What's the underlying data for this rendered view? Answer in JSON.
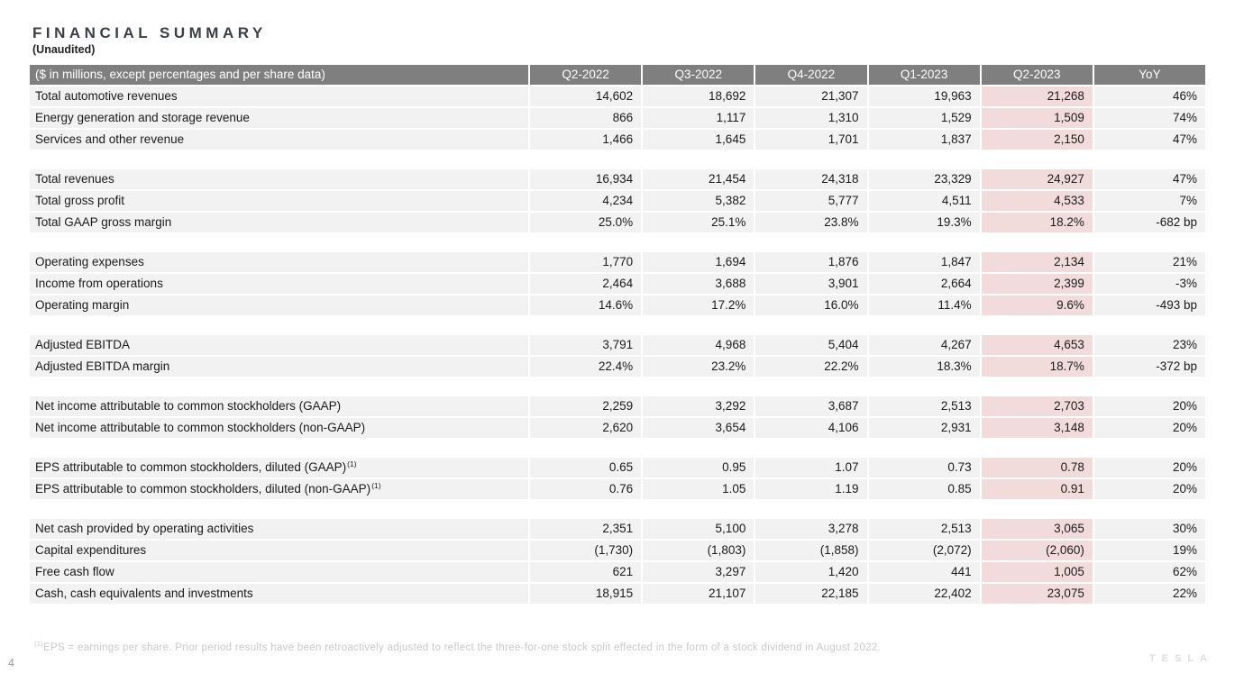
{
  "page": {
    "title": "FINANCIAL SUMMARY",
    "subtitle": "(Unaudited)",
    "page_number": "4",
    "footnote_marker": "(1)",
    "footnote_text": "EPS = earnings per share. Prior period results have been retroactively adjusted to reflect the three-for-one stock split effected in the form of a stock dividend in August 2022.",
    "logo_text": "TESLA"
  },
  "colors": {
    "header_bg": "#7f7f7f",
    "header_text": "#ffffff",
    "row_bg": "#f2f2f2",
    "highlight_column_bg": "#f2dcdb",
    "body_text": "#1a1a1a",
    "title_text": "#3a3f46",
    "footnote_text": "#c9c9c9"
  },
  "chart_data": {
    "type": "table",
    "corner_label": "($ in millions, except percentages and per share data)",
    "columns": [
      "Q2-2022",
      "Q3-2022",
      "Q4-2022",
      "Q1-2023",
      "Q2-2023",
      "YoY"
    ],
    "highlight_column_index": 4,
    "highlight_column": "Q2-2023",
    "sections": [
      {
        "rows": [
          {
            "label": "Total automotive revenues",
            "values": [
              "14,602",
              "18,692",
              "21,307",
              "19,963",
              "21,268",
              "46%"
            ]
          },
          {
            "label": "Energy generation and storage revenue",
            "values": [
              "866",
              "1,117",
              "1,310",
              "1,529",
              "1,509",
              "74%"
            ]
          },
          {
            "label": "Services and other revenue",
            "values": [
              "1,466",
              "1,645",
              "1,701",
              "1,837",
              "2,150",
              "47%"
            ]
          }
        ]
      },
      {
        "rows": [
          {
            "label": "Total revenues",
            "values": [
              "16,934",
              "21,454",
              "24,318",
              "23,329",
              "24,927",
              "47%"
            ]
          },
          {
            "label": "Total gross profit",
            "values": [
              "4,234",
              "5,382",
              "5,777",
              "4,511",
              "4,533",
              "7%"
            ]
          },
          {
            "label": "Total GAAP gross margin",
            "values": [
              "25.0%",
              "25.1%",
              "23.8%",
              "19.3%",
              "18.2%",
              "-682 bp"
            ]
          }
        ]
      },
      {
        "rows": [
          {
            "label": "Operating expenses",
            "values": [
              "1,770",
              "1,694",
              "1,876",
              "1,847",
              "2,134",
              "21%"
            ]
          },
          {
            "label": "Income from operations",
            "values": [
              "2,464",
              "3,688",
              "3,901",
              "2,664",
              "2,399",
              "-3%"
            ]
          },
          {
            "label": "Operating margin",
            "values": [
              "14.6%",
              "17.2%",
              "16.0%",
              "11.4%",
              "9.6%",
              "-493 bp"
            ]
          }
        ]
      },
      {
        "rows": [
          {
            "label": "Adjusted EBITDA",
            "values": [
              "3,791",
              "4,968",
              "5,404",
              "4,267",
              "4,653",
              "23%"
            ]
          },
          {
            "label": "Adjusted EBITDA margin",
            "values": [
              "22.4%",
              "23.2%",
              "22.2%",
              "18.3%",
              "18.7%",
              "-372 bp"
            ]
          }
        ]
      },
      {
        "rows": [
          {
            "label": "Net income attributable to common stockholders (GAAP)",
            "values": [
              "2,259",
              "3,292",
              "3,687",
              "2,513",
              "2,703",
              "20%"
            ]
          },
          {
            "label": "Net income attributable to common stockholders (non-GAAP)",
            "values": [
              "2,620",
              "3,654",
              "4,106",
              "2,931",
              "3,148",
              "20%"
            ]
          }
        ]
      },
      {
        "rows": [
          {
            "label": "EPS attributable to common stockholders, diluted (GAAP)",
            "sup": "(1)",
            "values": [
              "0.65",
              "0.95",
              "1.07",
              "0.73",
              "0.78",
              "20%"
            ]
          },
          {
            "label": "EPS attributable to common stockholders, diluted (non-GAAP)",
            "sup": "(1)",
            "values": [
              "0.76",
              "1.05",
              "1.19",
              "0.85",
              "0.91",
              "20%"
            ]
          }
        ]
      },
      {
        "rows": [
          {
            "label": "Net cash provided by operating activities",
            "values": [
              "2,351",
              "5,100",
              "3,278",
              "2,513",
              "3,065",
              "30%"
            ]
          },
          {
            "label": "Capital expenditures",
            "values": [
              "(1,730)",
              "(1,803)",
              "(1,858)",
              "(2,072)",
              "(2,060)",
              "19%"
            ]
          },
          {
            "label": "Free cash flow",
            "values": [
              "621",
              "3,297",
              "1,420",
              "441",
              "1,005",
              "62%"
            ]
          },
          {
            "label": "Cash, cash equivalents and investments",
            "values": [
              "18,915",
              "21,107",
              "22,185",
              "22,402",
              "23,075",
              "22%"
            ]
          }
        ]
      }
    ]
  }
}
